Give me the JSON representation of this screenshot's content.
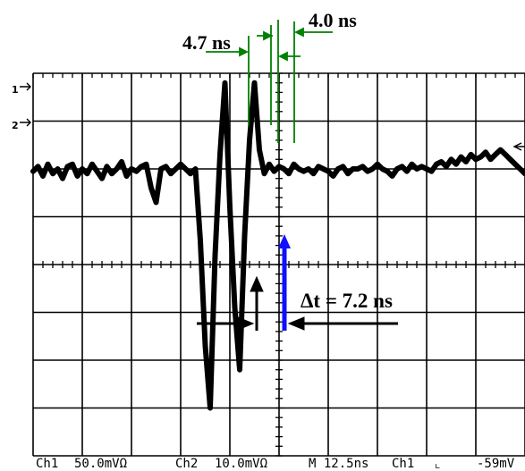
{
  "chart_data": {
    "type": "line",
    "series": [
      {
        "x": [
          0,
          2,
          4,
          6,
          8,
          10,
          12,
          14,
          16,
          18,
          20,
          22,
          24,
          26,
          28,
          30,
          32,
          34,
          36,
          38,
          40,
          42,
          44,
          46,
          48,
          50,
          52,
          54,
          56,
          58,
          60,
          62,
          64,
          66,
          68,
          70,
          72,
          74,
          76,
          78,
          80,
          82,
          84,
          86,
          88,
          90,
          92,
          94,
          96,
          98,
          100,
          102,
          104,
          106,
          108,
          110,
          112,
          114,
          116,
          118,
          120,
          122,
          124,
          126,
          128,
          130,
          132,
          134,
          136,
          138,
          140,
          142,
          144,
          146,
          148,
          150,
          152,
          154,
          156,
          158,
          160,
          162,
          164,
          166,
          168,
          170,
          172,
          174,
          176,
          178,
          180,
          182,
          184,
          186,
          188,
          190,
          192,
          194,
          196,
          198,
          200
        ],
        "y": [
          1.95,
          2.05,
          1.85,
          2.1,
          1.9,
          2.0,
          1.8,
          2.05,
          2.1,
          1.85,
          2.0,
          1.9,
          2.1,
          1.95,
          1.8,
          2.05,
          1.9,
          2.0,
          2.15,
          1.85,
          2.0,
          1.95,
          2.05,
          2.1,
          1.6,
          1.3,
          2.0,
          2.05,
          1.9,
          2.0,
          2.1,
          2.0,
          1.9,
          2.0,
          0.5,
          -1.7,
          -3.0,
          0.2,
          2.3,
          3.8,
          1.2,
          -0.9,
          -2.2,
          0.6,
          2.6,
          3.8,
          2.4,
          1.9,
          2.1,
          1.95,
          2.05,
          2.0,
          1.9,
          2.1,
          2.0,
          1.95,
          2.0,
          1.9,
          2.05,
          2.0,
          1.95,
          1.85,
          2.0,
          2.05,
          1.9,
          2.0,
          2.0,
          2.05,
          1.95,
          2.0,
          2.1,
          2.0,
          1.95,
          1.85,
          2.0,
          2.05,
          1.95,
          2.1,
          2.0,
          2.05,
          2.0,
          1.95,
          2.1,
          2.15,
          2.05,
          2.2,
          2.1,
          2.25,
          2.15,
          2.3,
          2.2,
          2.25,
          2.35,
          2.2,
          2.3,
          2.4,
          2.3,
          2.2,
          2.1,
          2.0,
          1.9
        ]
      }
    ],
    "xlim": [
      0,
      200
    ],
    "ylim": [
      -4,
      4
    ],
    "grid": true,
    "channel_markers": [
      "1",
      "2"
    ],
    "annotations": {
      "left_width": "4.7 ns",
      "right_width": "4.0 ns",
      "delta": "Δt = 7.2 ns"
    },
    "status_bar": {
      "ch1": "Ch1",
      "ch1_scale": "50.0mVΩ",
      "ch2": "Ch2",
      "ch2_scale": "10.0mVΩ",
      "timebase": "M 12.5ns",
      "trigger_src": "Ch1",
      "trigger_slope": "⌞",
      "trigger_level": "-59mV"
    },
    "colors": {
      "trace": "#000000",
      "grid": "#000000",
      "width_markers": "#008000",
      "delta_marker": "#1010ff"
    }
  }
}
